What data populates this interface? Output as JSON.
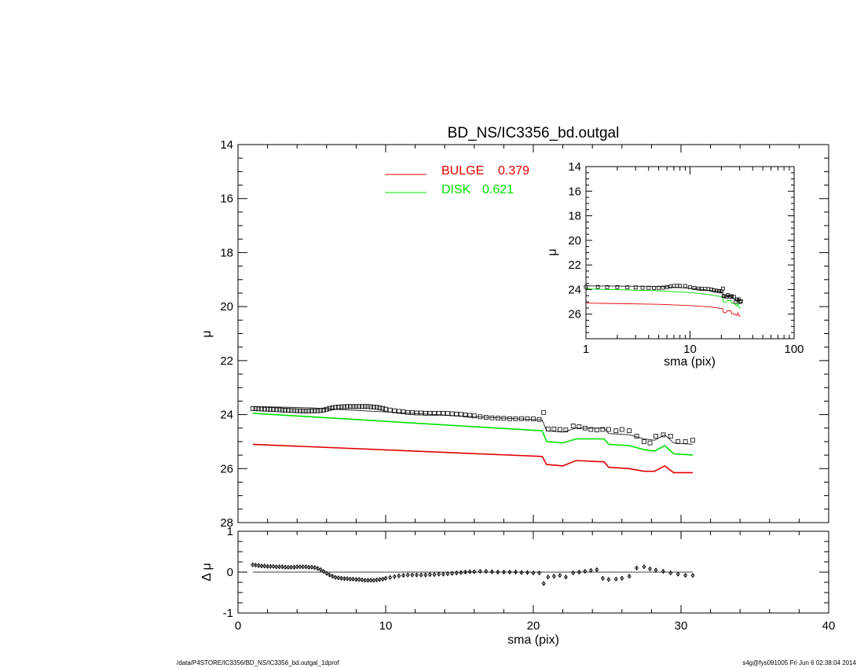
{
  "colors": {
    "bulge": "#e00000",
    "disk": "#00e000",
    "observed": "#000000",
    "model": "#333333"
  },
  "footer": {
    "left": "/data/P4STORE/IC3356/BD_NS/IC3356_bd.outgal_1dprof",
    "right": "s4g@fys091005  Fri Jun  6 02:38:04 2014"
  },
  "chart_data": [
    {
      "id": "main",
      "type": "line",
      "title": "BD_NS/IC3356_bd.outgal",
      "xlabel": "",
      "ylabel": "μ",
      "xlim": [
        0,
        40
      ],
      "ylim": [
        28,
        14
      ],
      "yticks": [
        14,
        16,
        18,
        20,
        22,
        24,
        26,
        28
      ],
      "legend": [
        {
          "label": "BULGE",
          "value": "0.379",
          "color": "#e00000"
        },
        {
          "label": "DISK",
          "value": "0.621",
          "color": "#00e000"
        }
      ],
      "legend_position": "top-center",
      "series": [
        {
          "name": "BULGE",
          "style": "line",
          "color": "#e00000",
          "x": [
            1.0,
            20.6,
            20.9,
            22.0,
            22.9,
            24.8,
            25.1,
            26.5,
            27.5,
            28.2,
            28.9,
            29.5,
            30.8
          ],
          "y": [
            25.1,
            25.55,
            25.85,
            25.9,
            25.7,
            25.75,
            25.95,
            26.0,
            26.1,
            26.1,
            25.9,
            26.15,
            26.15
          ]
        },
        {
          "name": "DISK",
          "style": "line",
          "color": "#00e000",
          "x": [
            1.0,
            20.6,
            20.9,
            22.0,
            22.9,
            24.8,
            25.1,
            26.5,
            27.5,
            28.2,
            28.9,
            29.5,
            30.8
          ],
          "y": [
            23.95,
            24.6,
            25.0,
            25.05,
            24.9,
            24.9,
            25.1,
            25.15,
            25.3,
            25.35,
            25.15,
            25.45,
            25.5
          ]
        },
        {
          "name": "model",
          "style": "line",
          "color": "#333333",
          "x": [
            1.0,
            5.0,
            6.5,
            10.0,
            15.0,
            20.6,
            20.9,
            22.0,
            22.9,
            24.8,
            25.1,
            26.5,
            27.5,
            28.2,
            28.9,
            29.5,
            30.8
          ],
          "y": [
            23.7,
            23.75,
            23.8,
            23.9,
            24.05,
            24.2,
            24.6,
            24.65,
            24.5,
            24.5,
            24.7,
            24.75,
            24.9,
            24.95,
            24.75,
            25.05,
            25.1
          ]
        },
        {
          "name": "observed",
          "style": "squares",
          "color": "#000000",
          "x": [
            1.0,
            1.2,
            1.4,
            1.6,
            1.8,
            2.0,
            2.2,
            2.4,
            2.6,
            2.8,
            3.0,
            3.2,
            3.4,
            3.6,
            3.8,
            4.0,
            4.2,
            4.4,
            4.6,
            4.8,
            5.0,
            5.2,
            5.4,
            5.6,
            5.8,
            6.0,
            6.2,
            6.4,
            6.6,
            6.8,
            7.0,
            7.2,
            7.4,
            7.6,
            7.8,
            8.0,
            8.2,
            8.4,
            8.6,
            8.8,
            9.0,
            9.2,
            9.4,
            9.6,
            9.8,
            10.0,
            10.3,
            10.6,
            10.9,
            11.2,
            11.5,
            11.8,
            12.1,
            12.4,
            12.7,
            13.0,
            13.3,
            13.6,
            13.9,
            14.2,
            14.5,
            14.8,
            15.1,
            15.4,
            15.7,
            16.0,
            16.4,
            16.8,
            17.2,
            17.6,
            18.0,
            18.4,
            18.8,
            19.2,
            19.6,
            20.0,
            20.4,
            20.7,
            21.0,
            21.4,
            21.8,
            22.2,
            22.7,
            23.1,
            23.5,
            23.9,
            24.3,
            24.7,
            25.1,
            25.6,
            26.0,
            26.5,
            27.0,
            27.5,
            27.9,
            28.3,
            28.8,
            29.3,
            29.8,
            30.3,
            30.8
          ],
          "y": [
            23.78,
            23.78,
            23.79,
            23.79,
            23.8,
            23.8,
            23.81,
            23.81,
            23.82,
            23.82,
            23.83,
            23.84,
            23.84,
            23.85,
            23.85,
            23.86,
            23.86,
            23.87,
            23.87,
            23.87,
            23.86,
            23.86,
            23.86,
            23.85,
            23.83,
            23.8,
            23.77,
            23.75,
            23.73,
            23.72,
            23.71,
            23.71,
            23.7,
            23.7,
            23.7,
            23.7,
            23.7,
            23.7,
            23.7,
            23.7,
            23.71,
            23.72,
            23.73,
            23.75,
            23.77,
            23.8,
            23.83,
            23.86,
            23.88,
            23.9,
            23.92,
            23.93,
            23.94,
            23.94,
            23.95,
            23.95,
            23.95,
            23.95,
            23.95,
            23.96,
            23.97,
            23.98,
            23.99,
            24.01,
            24.03,
            24.05,
            24.08,
            24.1,
            24.12,
            24.13,
            24.14,
            24.15,
            24.15,
            24.15,
            24.15,
            24.16,
            24.18,
            23.92,
            24.53,
            24.53,
            24.55,
            24.57,
            24.42,
            24.45,
            24.5,
            24.55,
            24.57,
            24.55,
            24.55,
            24.6,
            24.55,
            24.6,
            24.8,
            25.0,
            25.05,
            24.8,
            24.75,
            24.8,
            25.0,
            25.0,
            24.95
          ]
        }
      ]
    },
    {
      "id": "residual",
      "type": "scatter",
      "xlabel": "sma (pix)",
      "ylabel": "Δ μ",
      "xlim": [
        0,
        40
      ],
      "ylim": [
        -1,
        1
      ],
      "xticks": [
        0,
        10,
        20,
        30,
        40
      ],
      "yticks": [
        -1,
        0,
        1
      ],
      "zero_line": true,
      "series": [
        {
          "name": "residual",
          "style": "diamonds-with-errorbars",
          "x": [
            1.0,
            1.2,
            1.4,
            1.6,
            1.8,
            2.0,
            2.2,
            2.4,
            2.6,
            2.8,
            3.0,
            3.2,
            3.4,
            3.6,
            3.8,
            4.0,
            4.2,
            4.4,
            4.6,
            4.8,
            5.0,
            5.2,
            5.4,
            5.6,
            5.8,
            6.0,
            6.2,
            6.4,
            6.6,
            6.8,
            7.0,
            7.2,
            7.4,
            7.6,
            7.8,
            8.0,
            8.2,
            8.4,
            8.6,
            8.8,
            9.0,
            9.2,
            9.4,
            9.6,
            9.8,
            10.0,
            10.3,
            10.6,
            10.9,
            11.2,
            11.5,
            11.8,
            12.1,
            12.4,
            12.7,
            13.0,
            13.3,
            13.6,
            13.9,
            14.2,
            14.5,
            14.8,
            15.1,
            15.4,
            15.7,
            16.0,
            16.4,
            16.8,
            17.2,
            17.6,
            18.0,
            18.4,
            18.8,
            19.2,
            19.6,
            20.0,
            20.4,
            20.7,
            21.0,
            21.4,
            21.8,
            22.2,
            22.7,
            23.1,
            23.5,
            23.9,
            24.3,
            24.7,
            25.1,
            25.6,
            26.0,
            26.5,
            27.0,
            27.5,
            27.9,
            28.3,
            28.8,
            29.3,
            29.8,
            30.3,
            30.8
          ],
          "y": [
            0.18,
            0.17,
            0.16,
            0.15,
            0.15,
            0.14,
            0.14,
            0.14,
            0.13,
            0.13,
            0.13,
            0.12,
            0.12,
            0.12,
            0.12,
            0.13,
            0.13,
            0.13,
            0.13,
            0.12,
            0.12,
            0.11,
            0.09,
            0.06,
            0.02,
            -0.03,
            -0.07,
            -0.1,
            -0.13,
            -0.14,
            -0.15,
            -0.16,
            -0.16,
            -0.17,
            -0.17,
            -0.18,
            -0.18,
            -0.19,
            -0.2,
            -0.2,
            -0.2,
            -0.2,
            -0.19,
            -0.18,
            -0.17,
            -0.15,
            -0.13,
            -0.11,
            -0.09,
            -0.08,
            -0.07,
            -0.07,
            -0.07,
            -0.07,
            -0.07,
            -0.06,
            -0.06,
            -0.05,
            -0.05,
            -0.04,
            -0.03,
            -0.02,
            -0.01,
            0.0,
            0.01,
            0.01,
            0.02,
            0.02,
            0.01,
            0.0,
            0.0,
            0.0,
            0.0,
            -0.01,
            -0.01,
            -0.02,
            -0.02,
            -0.28,
            -0.12,
            -0.1,
            -0.08,
            -0.12,
            -0.02,
            0.0,
            0.02,
            0.04,
            0.06,
            -0.15,
            -0.18,
            -0.17,
            -0.15,
            -0.1,
            0.1,
            0.13,
            0.08,
            0.05,
            0.02,
            -0.02,
            -0.05,
            -0.08,
            -0.08
          ],
          "err": 0.05
        }
      ]
    },
    {
      "id": "inset",
      "type": "line",
      "xlabel": "sma (pix)",
      "ylabel": "μ",
      "xscale": "log",
      "xlim": [
        1,
        100
      ],
      "ylim": [
        28,
        14
      ],
      "xticks": [
        1,
        10,
        100
      ],
      "yticks": [
        14,
        16,
        18,
        20,
        22,
        24,
        26
      ],
      "series": [
        {
          "name": "BULGE",
          "style": "line",
          "color": "#e00000",
          "x": [
            1.0,
            5,
            10,
            15,
            20.6,
            20.9,
            22.0,
            22.9,
            24.8,
            25.1,
            26.5,
            28.2,
            28.9,
            29.5,
            30.8
          ],
          "y": [
            25.1,
            25.2,
            25.3,
            25.4,
            25.55,
            25.85,
            25.9,
            25.7,
            25.75,
            25.95,
            26.0,
            26.1,
            25.9,
            26.15,
            26.15
          ]
        },
        {
          "name": "DISK",
          "style": "line",
          "color": "#00e000",
          "x": [
            1.0,
            5,
            10,
            15,
            20.6,
            20.9,
            22.0,
            22.9,
            24.8,
            25.1,
            26.5,
            28.2,
            28.9,
            29.5,
            30.8
          ],
          "y": [
            23.95,
            24.1,
            24.25,
            24.4,
            24.6,
            25.0,
            25.05,
            24.9,
            24.9,
            25.1,
            25.15,
            25.35,
            25.15,
            25.45,
            25.5
          ]
        },
        {
          "name": "model",
          "style": "line",
          "color": "#333333",
          "x": [
            1.0,
            5.0,
            6.5,
            10.0,
            15.0,
            20.6,
            20.9,
            22.0,
            22.9,
            24.8,
            25.1,
            26.5,
            28.2,
            28.9,
            29.5,
            30.8
          ],
          "y": [
            23.7,
            23.75,
            23.8,
            23.9,
            24.05,
            24.2,
            24.6,
            24.65,
            24.5,
            24.5,
            24.7,
            24.75,
            24.95,
            24.75,
            25.05,
            25.1
          ]
        },
        {
          "name": "observed",
          "style": "squares",
          "color": "#000000",
          "x": [
            1.0,
            1.3,
            1.6,
            2.0,
            2.5,
            3.0,
            3.5,
            4.0,
            4.5,
            5.0,
            5.5,
            6.0,
            6.5,
            7.0,
            7.5,
            8.0,
            9.0,
            10.0,
            11.0,
            12.0,
            13.0,
            14.0,
            15.0,
            16.0,
            17.0,
            18.0,
            19.0,
            20.0,
            20.7,
            21.0,
            22.2,
            23.1,
            24.3,
            25.1,
            26.5,
            27.5,
            28.3,
            29.3,
            30.3,
            30.8
          ],
          "y": [
            23.78,
            23.79,
            23.8,
            23.8,
            23.82,
            23.83,
            23.85,
            23.86,
            23.87,
            23.86,
            23.85,
            23.8,
            23.74,
            23.71,
            23.7,
            23.7,
            23.71,
            23.8,
            23.88,
            23.92,
            23.94,
            23.95,
            23.96,
            24.0,
            24.06,
            24.1,
            24.13,
            24.15,
            23.92,
            24.53,
            24.57,
            24.45,
            24.57,
            24.55,
            24.6,
            25.0,
            24.8,
            24.8,
            25.0,
            24.95
          ]
        }
      ]
    }
  ]
}
